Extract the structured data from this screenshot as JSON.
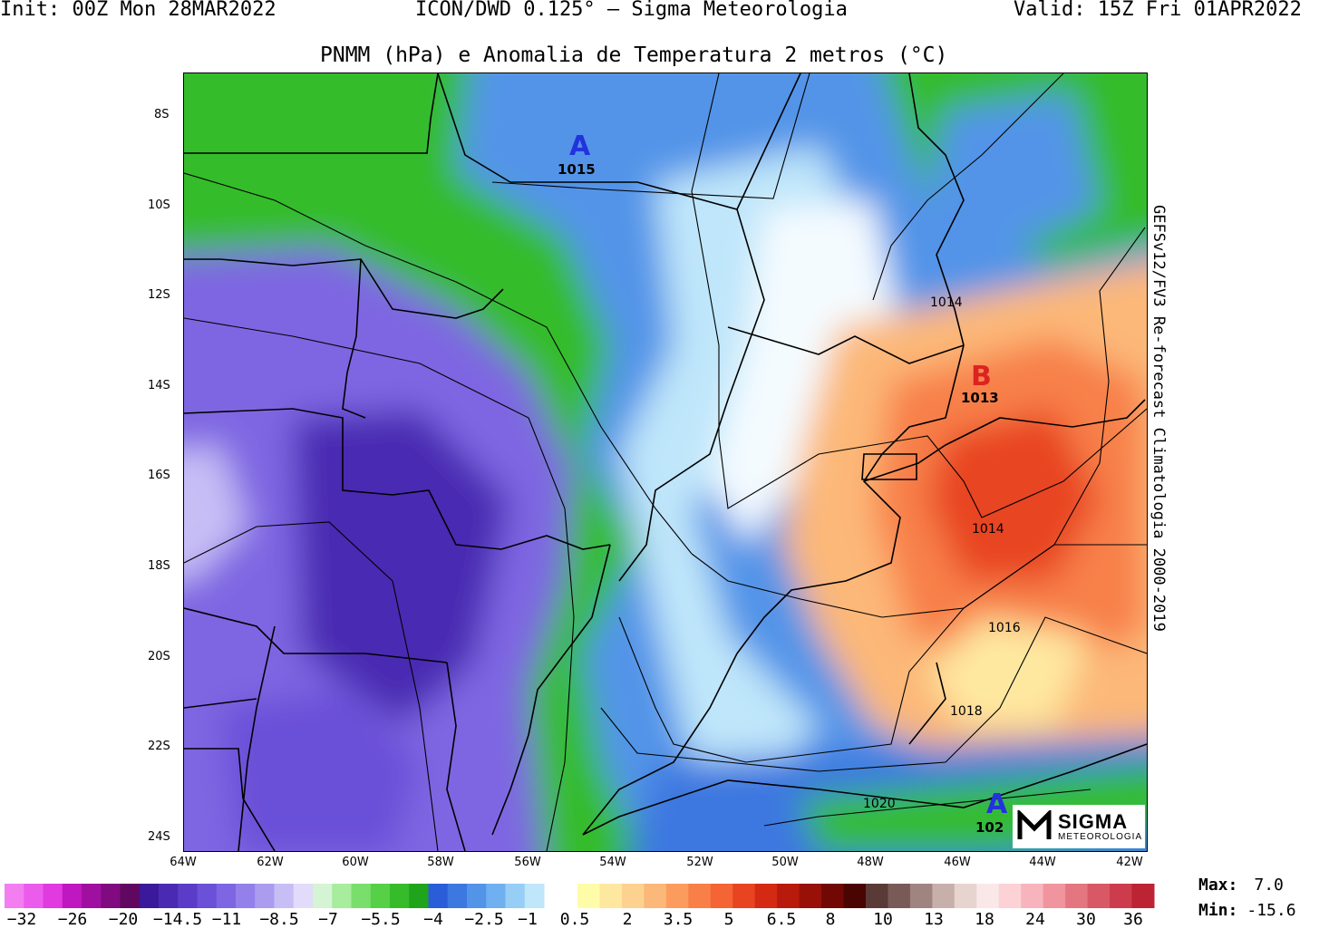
{
  "header": {
    "init": "Init: 00Z Mon 28MAR2022",
    "model": "ICON/DWD 0.125° — Sigma Meteorologia",
    "valid": "Valid: 15Z Fri 01APR2022"
  },
  "title": "PNMM (hPa) e Anomalia de Temperatura 2 metros (°C)",
  "side_label": "GEFSv12/FV3 Re-forecast Climatologia 2000-2019",
  "lat_labels": [
    "8S",
    "10S",
    "12S",
    "14S",
    "16S",
    "18S",
    "20S",
    "22S",
    "24S"
  ],
  "lon_labels": [
    "64W",
    "62W",
    "60W",
    "58W",
    "56W",
    "54W",
    "52W",
    "50W",
    "48W",
    "46W",
    "44W",
    "42W"
  ],
  "pressure_centers": [
    {
      "letter": "A",
      "value": "1015",
      "color": "#2233dd"
    },
    {
      "letter": "B",
      "value": "1013",
      "color": "#dd2222"
    },
    {
      "letter": "A",
      "value": "102",
      "color": "#2233dd"
    }
  ],
  "isobar_labels": [
    "1014",
    "1014",
    "1016",
    "1018",
    "1020"
  ],
  "legend": {
    "cold_colors": [
      "#f27ef2",
      "#ec5cec",
      "#e03ae0",
      "#c018c0",
      "#a010a0",
      "#800a80",
      "#600860",
      "#3a1a9a",
      "#4a2ab2",
      "#5a3cc8",
      "#6b50d8",
      "#7e66e2",
      "#9480ea",
      "#ab9cf0",
      "#c8bef6",
      "#e2dcfa",
      "#d4f4d4",
      "#a8ec9e",
      "#7ade6c",
      "#56d046",
      "#36bc2a",
      "#1fa41c",
      "#2a5ed8",
      "#3c78e0",
      "#5294e8",
      "#70b0f0",
      "#96cef6",
      "#bfe6fa"
    ],
    "warm_colors": [
      "#fefca8",
      "#fee8a0",
      "#fdd290",
      "#fcb878",
      "#fb9c5e",
      "#f88048",
      "#f46434",
      "#e84422",
      "#d42a14",
      "#b81a0c",
      "#981008",
      "#720804",
      "#4a0402",
      "#5a3a36",
      "#7a5a56",
      "#a08480",
      "#c8b0aa",
      "#e8d4ce",
      "#fae8e8",
      "#fcd2d6",
      "#f8b4bc",
      "#f0949e",
      "#e47680",
      "#d85866",
      "#cc3c4c",
      "#bc2434"
    ],
    "labels": [
      "-32",
      "-26",
      "-20",
      "-14.5",
      "-11",
      "-8.5",
      "-7",
      "-5.5",
      "-4",
      "-2.5",
      "-1",
      "0.5",
      "2",
      "3.5",
      "5",
      "6.5",
      "8",
      "10",
      "13",
      "18",
      "24",
      "30",
      "36"
    ]
  },
  "max_label": "Max:",
  "max_value": "7.0",
  "min_label": "Min:",
  "min_value": "-15.6",
  "logo": {
    "name": "SIGMA",
    "sub": "METEOROLOGIA"
  }
}
